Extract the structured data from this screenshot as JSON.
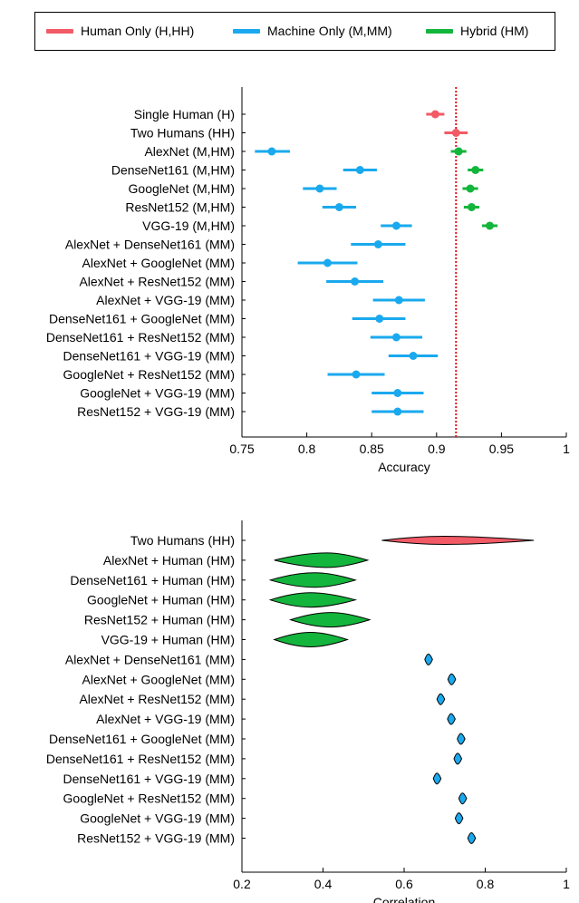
{
  "colors": {
    "human": "#f25a66",
    "machine": "#1aa9ee",
    "hybrid": "#14b53c",
    "ref_line": "#e0141e"
  },
  "legend": [
    {
      "label": "Human Only (H,HH)",
      "color_key": "human"
    },
    {
      "label": "Machine Only (M,MM)",
      "color_key": "machine"
    },
    {
      "label": "Hybrid (HM)",
      "color_key": "hybrid"
    }
  ],
  "chart_data": [
    {
      "type": "scatter",
      "title": "",
      "xlabel": "Accuracy",
      "ylabel": "",
      "xlim": [
        0.75,
        1.0
      ],
      "xticks": [
        "0.75",
        "0.8",
        "0.85",
        "0.9",
        "0.95",
        "1"
      ],
      "reference_line": {
        "x": 0.915,
        "style": "dotted",
        "color_key": "ref_line"
      },
      "grid": false,
      "categories": [
        "Single Human (H)",
        "Two Humans (HH)",
        "AlexNet (M,HM)",
        "DenseNet161 (M,HM)",
        "GoogleNet (M,HM)",
        "ResNet152 (M,HM)",
        "VGG-19 (M,HM)",
        "AlexNet + DenseNet161 (MM)",
        "AlexNet + GoogleNet (MM)",
        "AlexNet + ResNet152 (MM)",
        "AlexNet + VGG-19 (MM)",
        "DenseNet161 + GoogleNet (MM)",
        "DenseNet161 + ResNet152 (MM)",
        "DenseNet161 + VGG-19 (MM)",
        "GoogleNet + ResNet152 (MM)",
        "GoogleNet + VGG-19 (MM)",
        "ResNet152 + VGG-19 (MM)"
      ],
      "points": [
        {
          "row": 0,
          "value": 0.899,
          "low": 0.892,
          "high": 0.906,
          "color_key": "human"
        },
        {
          "row": 1,
          "value": 0.915,
          "low": 0.906,
          "high": 0.924,
          "color_key": "human"
        },
        {
          "row": 2,
          "value": 0.773,
          "low": 0.76,
          "high": 0.787,
          "color_key": "machine"
        },
        {
          "row": 2,
          "value": 0.917,
          "low": 0.911,
          "high": 0.923,
          "color_key": "hybrid"
        },
        {
          "row": 3,
          "value": 0.841,
          "low": 0.828,
          "high": 0.854,
          "color_key": "machine"
        },
        {
          "row": 3,
          "value": 0.93,
          "low": 0.924,
          "high": 0.936,
          "color_key": "hybrid"
        },
        {
          "row": 4,
          "value": 0.81,
          "low": 0.797,
          "high": 0.823,
          "color_key": "machine"
        },
        {
          "row": 4,
          "value": 0.926,
          "low": 0.92,
          "high": 0.932,
          "color_key": "hybrid"
        },
        {
          "row": 5,
          "value": 0.825,
          "low": 0.812,
          "high": 0.838,
          "color_key": "machine"
        },
        {
          "row": 5,
          "value": 0.927,
          "low": 0.921,
          "high": 0.933,
          "color_key": "hybrid"
        },
        {
          "row": 6,
          "value": 0.869,
          "low": 0.857,
          "high": 0.881,
          "color_key": "machine"
        },
        {
          "row": 6,
          "value": 0.941,
          "low": 0.935,
          "high": 0.947,
          "color_key": "hybrid"
        },
        {
          "row": 7,
          "value": 0.855,
          "low": 0.834,
          "high": 0.876,
          "color_key": "machine"
        },
        {
          "row": 8,
          "value": 0.816,
          "low": 0.793,
          "high": 0.839,
          "color_key": "machine"
        },
        {
          "row": 9,
          "value": 0.837,
          "low": 0.815,
          "high": 0.859,
          "color_key": "machine"
        },
        {
          "row": 10,
          "value": 0.871,
          "low": 0.851,
          "high": 0.891,
          "color_key": "machine"
        },
        {
          "row": 11,
          "value": 0.856,
          "low": 0.835,
          "high": 0.876,
          "color_key": "machine"
        },
        {
          "row": 12,
          "value": 0.869,
          "low": 0.849,
          "high": 0.889,
          "color_key": "machine"
        },
        {
          "row": 13,
          "value": 0.882,
          "low": 0.863,
          "high": 0.901,
          "color_key": "machine"
        },
        {
          "row": 14,
          "value": 0.838,
          "low": 0.816,
          "high": 0.86,
          "color_key": "machine"
        },
        {
          "row": 15,
          "value": 0.87,
          "low": 0.85,
          "high": 0.89,
          "color_key": "machine"
        },
        {
          "row": 16,
          "value": 0.87,
          "low": 0.85,
          "high": 0.89,
          "color_key": "machine"
        }
      ]
    },
    {
      "type": "violin",
      "title": "",
      "xlabel": "Correlation",
      "ylabel": "",
      "xlim": [
        0.2,
        1.0
      ],
      "xticks": [
        "0.2",
        "0.4",
        "0.6",
        "0.8",
        "1"
      ],
      "grid": false,
      "categories": [
        "Two Humans (HH)",
        "AlexNet + Human (HM)",
        "DenseNet161 + Human (HM)",
        "GoogleNet + Human (HM)",
        "ResNet152 + Human (HM)",
        "VGG-19 + Human (HM)",
        "AlexNet + DenseNet161 (MM)",
        "AlexNet + GoogleNet (MM)",
        "AlexNet + ResNet152 (MM)",
        "AlexNet + VGG-19 (MM)",
        "DenseNet161 + GoogleNet (MM)",
        "DenseNet161 + ResNet152 (MM)",
        "DenseNet161 + VGG-19 (MM)",
        "GoogleNet + ResNet152 (MM)",
        "GoogleNet + VGG-19 (MM)",
        "ResNet152 + VGG-19 (MM)"
      ],
      "distributions": [
        {
          "row": 0,
          "min": 0.545,
          "max": 0.92,
          "peak": 0.7,
          "color_key": "human"
        },
        {
          "row": 1,
          "min": 0.28,
          "max": 0.51,
          "peak": 0.41,
          "color_key": "hybrid"
        },
        {
          "row": 2,
          "min": 0.27,
          "max": 0.48,
          "peak": 0.38,
          "color_key": "hybrid"
        },
        {
          "row": 3,
          "min": 0.27,
          "max": 0.48,
          "peak": 0.37,
          "color_key": "hybrid"
        },
        {
          "row": 4,
          "min": 0.32,
          "max": 0.515,
          "peak": 0.42,
          "color_key": "hybrid"
        },
        {
          "row": 5,
          "min": 0.28,
          "max": 0.46,
          "peak": 0.37,
          "color_key": "hybrid"
        },
        {
          "row": 6,
          "min": 0.651,
          "max": 0.67,
          "peak": 0.66,
          "color_key": "machine"
        },
        {
          "row": 7,
          "min": 0.708,
          "max": 0.727,
          "peak": 0.717,
          "color_key": "machine"
        },
        {
          "row": 8,
          "min": 0.681,
          "max": 0.7,
          "peak": 0.69,
          "color_key": "machine"
        },
        {
          "row": 9,
          "min": 0.707,
          "max": 0.726,
          "peak": 0.716,
          "color_key": "machine"
        },
        {
          "row": 10,
          "min": 0.731,
          "max": 0.75,
          "peak": 0.74,
          "color_key": "machine"
        },
        {
          "row": 11,
          "min": 0.723,
          "max": 0.742,
          "peak": 0.732,
          "color_key": "machine"
        },
        {
          "row": 12,
          "min": 0.672,
          "max": 0.691,
          "peak": 0.681,
          "color_key": "machine"
        },
        {
          "row": 13,
          "min": 0.735,
          "max": 0.754,
          "peak": 0.744,
          "color_key": "machine"
        },
        {
          "row": 14,
          "min": 0.726,
          "max": 0.745,
          "peak": 0.735,
          "color_key": "machine"
        },
        {
          "row": 15,
          "min": 0.757,
          "max": 0.776,
          "peak": 0.766,
          "color_key": "machine"
        }
      ]
    }
  ]
}
